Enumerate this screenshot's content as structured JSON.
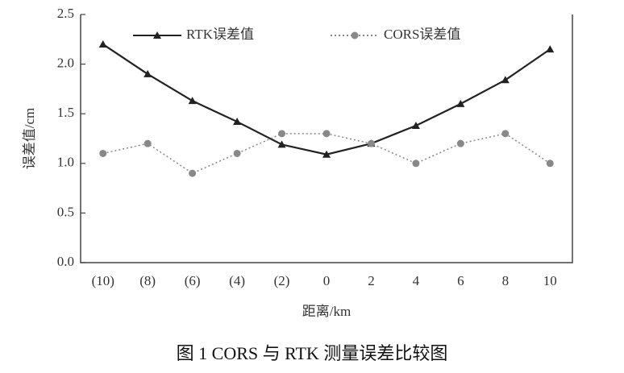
{
  "chart_data": {
    "type": "line",
    "caption": "图 1   CORS 与 RTK 测量误差比较图",
    "x_label": "距离/km",
    "y_label": "误差值/cm",
    "categories": [
      "(10)",
      "(8)",
      "(6)",
      "(4)",
      "(2)",
      "0",
      "2",
      "4",
      "6",
      "8",
      "10"
    ],
    "series": [
      {
        "name": "RTK误差值",
        "color": "#222222",
        "linestyle": "solid",
        "marker": "triangle",
        "values": [
          2.2,
          1.9,
          1.63,
          1.42,
          1.19,
          1.09,
          1.2,
          1.38,
          1.6,
          1.84,
          2.15
        ]
      },
      {
        "name": "CORS误差值",
        "color": "#888888",
        "linestyle": "dotted",
        "marker": "circle",
        "values": [
          1.1,
          1.2,
          0.9,
          1.1,
          1.3,
          1.3,
          1.2,
          1.0,
          1.2,
          1.3,
          1.0
        ]
      }
    ],
    "ylim": [
      0,
      2.5
    ],
    "yticks": [
      {
        "value": 0,
        "label": "0.0"
      },
      0.5,
      {
        "value": 1,
        "label": "1.0"
      },
      1.5,
      {
        "value": 2,
        "label": "2.0"
      },
      2.5
    ]
  }
}
